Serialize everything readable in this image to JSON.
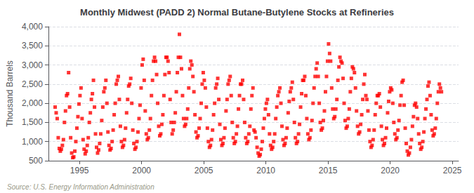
{
  "chart_data": {
    "type": "scatter",
    "title": "Monthly Midwest (PADD 2) Normal Butane-Butylene Stocks at Refineries",
    "ylabel": "Thousand Barrels",
    "annotations": [
      "Source: U.S. Energy Information Administration"
    ],
    "color": "#FF0000",
    "marker": "square",
    "grid": true,
    "xlim": [
      1992.5,
      2025.5
    ],
    "xticks": [
      1995,
      2000,
      2005,
      2010,
      2015,
      2020,
      2025
    ],
    "ylim": [
      500,
      4000
    ],
    "yticks": [
      500,
      {
        "value": 1000,
        "label": "1,000"
      },
      {
        "value": 1500,
        "label": "1,500"
      },
      {
        "value": 2000,
        "label": "2,000"
      },
      {
        "value": 2500,
        "label": "2,500"
      },
      {
        "value": 3000,
        "label": "3,000"
      },
      {
        "value": 3500,
        "label": "3,500"
      },
      {
        "value": 4000,
        "label": "4,000"
      }
    ],
    "x": [
      1993.0416666666667,
      1993.125,
      1993.2083333333333,
      1993.2916666666667,
      1993.375,
      1993.4583333333333,
      1993.5416666666667,
      1993.625,
      1993.7083333333333,
      1993.7916666666667,
      1993.875,
      1993.9583333333333,
      1994.0416666666667,
      1994.125,
      1994.2083333333333,
      1994.2916666666667,
      1994.375,
      1994.4583333333333,
      1994.5416666666667,
      1994.625,
      1994.7083333333333,
      1994.7916666666667,
      1994.875,
      1994.9583333333333,
      1995.0416666666667,
      1995.125,
      1995.2083333333333,
      1995.2916666666667,
      1995.375,
      1995.4583333333333,
      1995.5416666666667,
      1995.625,
      1995.7083333333333,
      1995.7916666666667,
      1995.875,
      1995.9583333333333,
      1996.0416666666667,
      1996.125,
      1996.2083333333333,
      1996.2916666666667,
      1996.375,
      1996.4583333333333,
      1996.5416666666667,
      1996.625,
      1996.7083333333333,
      1996.7916666666667,
      1996.875,
      1996.9583333333333,
      1997.0416666666667,
      1997.125,
      1997.2083333333333,
      1997.2916666666667,
      1997.375,
      1997.4583333333333,
      1997.5416666666667,
      1997.625,
      1997.7083333333333,
      1997.7916666666667,
      1997.875,
      1997.9583333333333,
      1998.0416666666667,
      1998.125,
      1998.2083333333333,
      1998.2916666666667,
      1998.375,
      1998.4583333333333,
      1998.5416666666667,
      1998.625,
      1998.7083333333333,
      1998.7916666666667,
      1998.875,
      1998.9583333333333,
      1999.0416666666667,
      1999.125,
      1999.2083333333333,
      1999.2916666666667,
      1999.375,
      1999.4583333333333,
      1999.5416666666667,
      1999.625,
      1999.7083333333333,
      1999.7916666666667,
      1999.875,
      1999.9583333333333,
      2000.0416666666667,
      2000.125,
      2000.2083333333333,
      2000.2916666666667,
      2000.375,
      2000.4583333333333,
      2000.5416666666667,
      2000.625,
      2000.7083333333333,
      2000.7916666666667,
      2000.875,
      2000.9583333333333,
      2001.0416666666667,
      2001.125,
      2001.2083333333333,
      2001.2916666666667,
      2001.375,
      2001.4583333333333,
      2001.5416666666667,
      2001.625,
      2001.7083333333333,
      2001.7916666666667,
      2001.875,
      2001.9583333333333,
      2002.0416666666667,
      2002.125,
      2002.2083333333333,
      2002.2916666666667,
      2002.375,
      2002.4583333333333,
      2002.5416666666667,
      2002.625,
      2002.7083333333333,
      2002.7916666666667,
      2002.875,
      2002.9583333333333,
      2003.0416666666667,
      2003.125,
      2003.2083333333333,
      2003.2916666666667,
      2003.375,
      2003.4583333333333,
      2003.5416666666667,
      2003.625,
      2003.7083333333333,
      2003.7916666666667,
      2003.875,
      2003.9583333333333,
      2004.0416666666667,
      2004.125,
      2004.2083333333333,
      2004.2916666666667,
      2004.375,
      2004.4583333333333,
      2004.5416666666667,
      2004.625,
      2004.7083333333333,
      2004.7916666666667,
      2004.875,
      2004.9583333333333,
      2005.0416666666667,
      2005.125,
      2005.2083333333333,
      2005.2916666666667,
      2005.375,
      2005.4583333333333,
      2005.5416666666667,
      2005.625,
      2005.7083333333333,
      2005.7916666666667,
      2005.875,
      2005.9583333333333,
      2006.0416666666667,
      2006.125,
      2006.2083333333333,
      2006.2916666666667,
      2006.375,
      2006.4583333333333,
      2006.5416666666667,
      2006.625,
      2006.7083333333333,
      2006.7916666666667,
      2006.875,
      2006.9583333333333,
      2007.0416666666667,
      2007.125,
      2007.2083333333333,
      2007.2916666666667,
      2007.375,
      2007.4583333333333,
      2007.5416666666667,
      2007.625,
      2007.7083333333333,
      2007.7916666666667,
      2007.875,
      2007.9583333333333,
      2008.0416666666667,
      2008.125,
      2008.2083333333333,
      2008.2916666666667,
      2008.375,
      2008.4583333333333,
      2008.5416666666667,
      2008.625,
      2008.7083333333333,
      2008.7916666666667,
      2008.875,
      2008.9583333333333,
      2009.0416666666667,
      2009.125,
      2009.2083333333333,
      2009.2916666666667,
      2009.375,
      2009.4583333333333,
      2009.5416666666667,
      2009.625,
      2009.7083333333333,
      2009.7916666666667,
      2009.875,
      2009.9583333333333,
      2010.0416666666667,
      2010.125,
      2010.2083333333333,
      2010.2916666666667,
      2010.375,
      2010.4583333333333,
      2010.5416666666667,
      2010.625,
      2010.7083333333333,
      2010.7916666666667,
      2010.875,
      2010.9583333333333,
      2011.0416666666667,
      2011.125,
      2011.2083333333333,
      2011.2916666666667,
      2011.375,
      2011.4583333333333,
      2011.5416666666667,
      2011.625,
      2011.7083333333333,
      2011.7916666666667,
      2011.875,
      2011.9583333333333,
      2012.0416666666667,
      2012.125,
      2012.2083333333333,
      2012.2916666666667,
      2012.375,
      2012.4583333333333,
      2012.5416666666667,
      2012.625,
      2012.7083333333333,
      2012.7916666666667,
      2012.875,
      2012.9583333333333,
      2013.0416666666667,
      2013.125,
      2013.2083333333333,
      2013.2916666666667,
      2013.375,
      2013.4583333333333,
      2013.5416666666667,
      2013.625,
      2013.7083333333333,
      2013.7916666666667,
      2013.875,
      2013.9583333333333,
      2014.0416666666667,
      2014.125,
      2014.2083333333333,
      2014.2916666666667,
      2014.375,
      2014.4583333333333,
      2014.5416666666667,
      2014.625,
      2014.7083333333333,
      2014.7916666666667,
      2014.875,
      2014.9583333333333,
      2015.0416666666667,
      2015.125,
      2015.2083333333333,
      2015.2916666666667,
      2015.375,
      2015.4583333333333,
      2015.5416666666667,
      2015.625,
      2015.7083333333333,
      2015.7916666666667,
      2015.875,
      2015.9583333333333,
      2016.0416666666667,
      2016.125,
      2016.2083333333333,
      2016.2916666666667,
      2016.375,
      2016.4583333333333,
      2016.5416666666667,
      2016.625,
      2016.7083333333333,
      2016.7916666666667,
      2016.875,
      2016.9583333333333,
      2017.0416666666667,
      2017.125,
      2017.2083333333333,
      2017.2916666666667,
      2017.375,
      2017.4583333333333,
      2017.5416666666667,
      2017.625,
      2017.7083333333333,
      2017.7916666666667,
      2017.875,
      2017.9583333333333,
      2018.0416666666667,
      2018.125,
      2018.2083333333333,
      2018.2916666666667,
      2018.375,
      2018.4583333333333,
      2018.5416666666667,
      2018.625,
      2018.7083333333333,
      2018.7916666666667,
      2018.875,
      2018.9583333333333,
      2019.0416666666667,
      2019.125,
      2019.2083333333333,
      2019.2916666666667,
      2019.375,
      2019.4583333333333,
      2019.5416666666667,
      2019.625,
      2019.7083333333333,
      2019.7916666666667,
      2019.875,
      2019.9583333333333,
      2020.0416666666667,
      2020.125,
      2020.2083333333333,
      2020.2916666666667,
      2020.375,
      2020.4583333333333,
      2020.5416666666667,
      2020.625,
      2020.7083333333333,
      2020.7916666666667,
      2020.875,
      2020.9583333333333,
      2021.0416666666667,
      2021.125,
      2021.2083333333333,
      2021.2916666666667,
      2021.375,
      2021.4583333333333,
      2021.5416666666667,
      2021.625,
      2021.7083333333333,
      2021.7916666666667,
      2021.875,
      2021.9583333333333,
      2022.0416666666667,
      2022.125,
      2022.2083333333333,
      2022.2916666666667,
      2022.375,
      2022.4583333333333,
      2022.5416666666667,
      2022.625,
      2022.7083333333333,
      2022.7916666666667,
      2022.875,
      2022.9583333333333,
      2023.0416666666667,
      2023.125,
      2023.2083333333333,
      2023.2916666666667,
      2023.375,
      2023.4583333333333,
      2023.5416666666667,
      2023.625,
      2023.7083333333333,
      2023.7916666666667,
      2023.875,
      2023.9583333333333,
      2024.0416666666667,
      2024.125
    ],
    "values": [
      1900,
      1750,
      1600,
      1100,
      820,
      750,
      800,
      900,
      1050,
      1500,
      1800,
      2200,
      2250,
      2800,
      1900,
      1100,
      700,
      580,
      600,
      750,
      1000,
      1350,
      1650,
      1980,
      2200,
      2400,
      1600,
      1050,
      800,
      680,
      750,
      900,
      1100,
      1500,
      1750,
      2100,
      2250,
      2600,
      1900,
      1200,
      850,
      700,
      780,
      950,
      1200,
      1550,
      1900,
      2300,
      2400,
      2600,
      2000,
      1250,
      900,
      780,
      820,
      1000,
      1300,
      1700,
      2000,
      2500,
      2600,
      2700,
      2100,
      1400,
      1000,
      850,
      900,
      1050,
      1350,
      1750,
      2100,
      2450,
      2500,
      2650,
      2000,
      1300,
      950,
      800,
      850,
      1000,
      1250,
      1600,
      1950,
      2400,
      3000,
      3150,
      2600,
      1800,
      1200,
      1050,
      1100,
      1300,
      1600,
      2200,
      2600,
      3100,
      3200,
      3100,
      2750,
      2000,
      1400,
      1150,
      1200,
      1450,
      1700,
      2200,
      2750,
      3200,
      3200,
      3100,
      2800,
      2100,
      1500,
      1200,
      1300,
      1500,
      1750,
      2300,
      2800,
      3200,
      3800,
      3200,
      2900,
      2200,
      1600,
      1400,
      1450,
      1600,
      1850,
      2400,
      2900,
      3100,
      3000,
      2700,
      2300,
      1700,
      1250,
      1100,
      1150,
      1350,
      1600,
      2000,
      2500,
      2800,
      2600,
      2400,
      1900,
      1350,
      1000,
      850,
      900,
      1050,
      1300,
      1700,
      2000,
      2400,
      2500,
      2650,
      2100,
      1450,
      1050,
      900,
      950,
      1100,
      1350,
      1800,
      2100,
      2500,
      2600,
      2700,
      2200,
      1500,
      1100,
      950,
      1000,
      1200,
      1400,
      1850,
      2200,
      2500,
      2500,
      2600,
      2100,
      1500,
      1100,
      950,
      1000,
      1200,
      1400,
      1850,
      2200,
      2400,
      1300,
      1250,
      1100,
      850,
      700,
      620,
      660,
      800,
      1000,
      1350,
      1600,
      1850,
      2000,
      2100,
      1700,
      1200,
      900,
      800,
      850,
      1000,
      1200,
      1600,
      1900,
      2200,
      2300,
      2400,
      2000,
      1400,
      1050,
      900,
      950,
      1100,
      1350,
      1750,
      2050,
      2300,
      2400,
      2550,
      2100,
      1500,
      1100,
      950,
      1000,
      1200,
      1450,
      1900,
      2250,
      2600,
      2600,
      2700,
      2200,
      1600,
      1200,
      1050,
      1100,
      1300,
      1550,
      2000,
      2400,
      2700,
      2900,
      3050,
      2700,
      2000,
      1500,
      1300,
      1350,
      1550,
      1800,
      2300,
      2700,
      3100,
      3550,
      3300,
      3100,
      2400,
      1850,
      1600,
      1650,
      1850,
      2100,
      2600,
      2950,
      3200,
      3100,
      3050,
      2650,
      2000,
      1550,
      1350,
      1400,
      1600,
      1850,
      2300,
      2650,
      2950,
      2900,
      2800,
      2400,
      1800,
      1400,
      1200,
      1250,
      1450,
      1700,
      2100,
      2500,
      2750,
      2200,
      2100,
      1800,
      1300,
      1000,
      850,
      900,
      1050,
      1300,
      1700,
      2000,
      2200,
      2200,
      2250,
      1900,
      1400,
      1050,
      900,
      950,
      1100,
      1350,
      1750,
      2050,
      2300,
      2400,
      2350,
      2000,
      1500,
      1200,
      1050,
      1100,
      1300,
      1550,
      1950,
      2200,
      2550,
      2600,
      1950,
      1350,
      950,
      750,
      650,
      700,
      850,
      1050,
      1400,
      1650,
      1950,
      2000,
      1900,
      1600,
      1200,
      950,
      800,
      850,
      1000,
      1250,
      1600,
      1850,
      2100,
      2450,
      2550,
      2200,
      1700,
      1300,
      1150,
      1200,
      1350,
      1600,
      2000,
      2300,
      2500,
      2400,
      2300
    ]
  }
}
